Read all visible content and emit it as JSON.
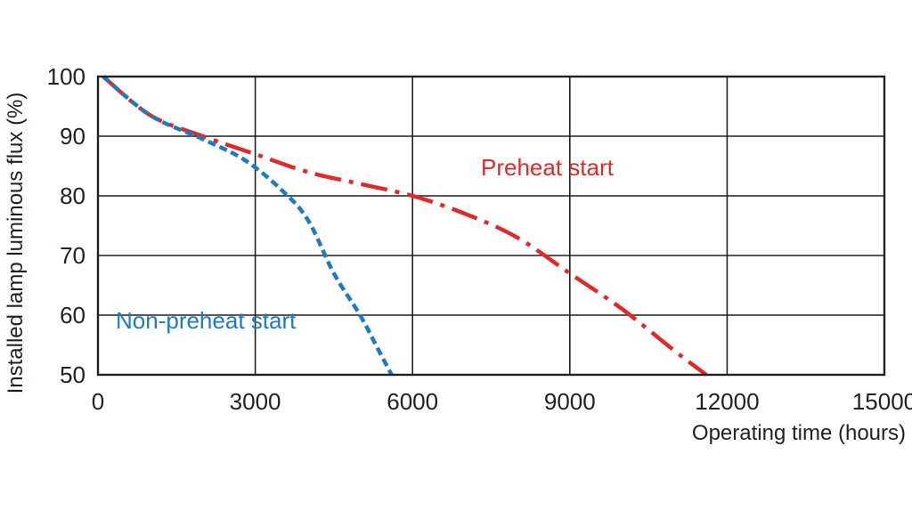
{
  "chart_data": {
    "type": "line",
    "title": "",
    "xlabel": "Operating time (hours)",
    "ylabel": "Installed lamp luminous flux  (%)",
    "xlim": [
      0,
      15000
    ],
    "ylim": [
      50,
      100
    ],
    "x_ticks": [
      "0",
      "3000",
      "6000",
      "9000",
      "12000",
      "15000"
    ],
    "y_ticks": [
      "50",
      "60",
      "70",
      "80",
      "90",
      "100"
    ],
    "x_tick_values": [
      0,
      3000,
      6000,
      9000,
      12000,
      15000
    ],
    "y_tick_values": [
      50,
      60,
      70,
      80,
      90,
      100
    ],
    "grid": true,
    "series": [
      {
        "name": "Preheat start",
        "color": "#e02a2a",
        "style": "dash-dot",
        "x": [
          100,
          1000,
          2000,
          3000,
          4000,
          5000,
          6000,
          7000,
          8000,
          9000,
          10000,
          11000,
          11600
        ],
        "y": [
          100,
          93.5,
          90.0,
          87.0,
          84.0,
          82.0,
          80.0,
          77.0,
          73.0,
          67.0,
          61.0,
          54.0,
          50.0
        ]
      },
      {
        "name": "Non-preheat start",
        "color": "#1f7bbf",
        "style": "dashed",
        "x": [
          100,
          1000,
          2000,
          2800,
          3500,
          4000,
          4500,
          5000,
          5300,
          5600
        ],
        "y": [
          100,
          93.5,
          89.5,
          86.0,
          81.0,
          76.0,
          67.0,
          60.0,
          55.0,
          50.0
        ]
      }
    ]
  }
}
